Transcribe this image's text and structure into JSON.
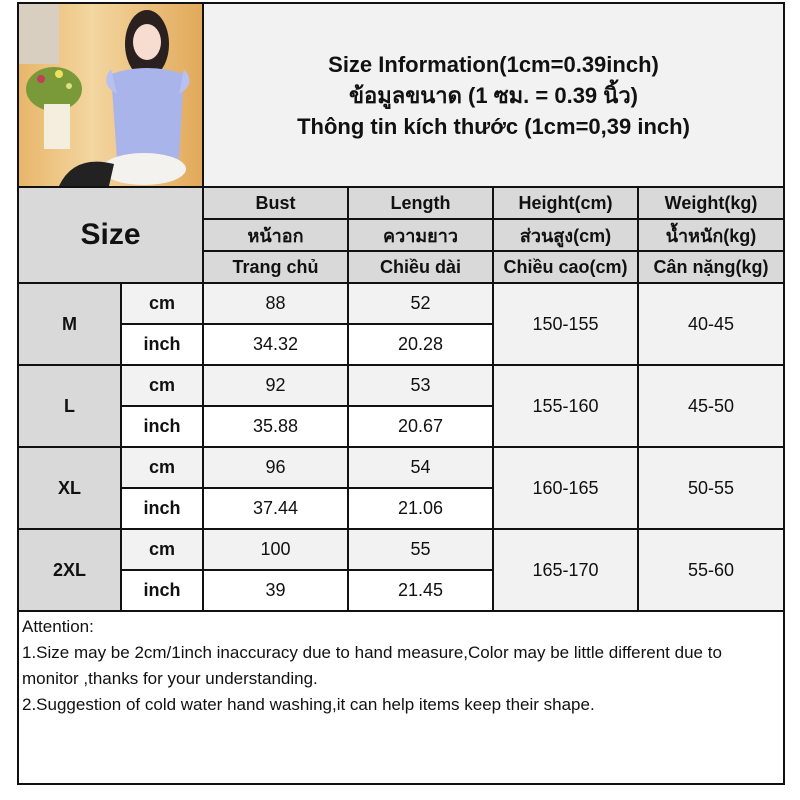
{
  "title_lines": [
    "Size Information(1cm=0.39inch)",
    "ข้อมูลขนาด (1 ซม. = 0.39 นิ้ว)",
    "Thông tin kích thước (1cm=0,39 inch)"
  ],
  "size_header": "Size",
  "columns": [
    {
      "en": "Bust",
      "th": "หน้าอก",
      "vi": "Trang chủ"
    },
    {
      "en": "Length",
      "th": "ความยาว",
      "vi": "Chiều dài"
    },
    {
      "en": "Height(cm)",
      "th": "ส่วนสูง(cm)",
      "vi": "Chiều cao(cm)"
    },
    {
      "en": "Weight(kg)",
      "th": "น้ำหนัก(kg)",
      "vi": "Cân nặng(kg)"
    }
  ],
  "units": {
    "cm": "cm",
    "inch": "inch"
  },
  "sizes": [
    {
      "size": "M",
      "cm": [
        "88",
        "52"
      ],
      "inch": [
        "34.32",
        "20.28"
      ],
      "height": "150-155",
      "weight": "40-45"
    },
    {
      "size": "L",
      "cm": [
        "92",
        "53"
      ],
      "inch": [
        "35.88",
        "20.67"
      ],
      "height": "155-160",
      "weight": "45-50"
    },
    {
      "size": "XL",
      "cm": [
        "96",
        "54"
      ],
      "inch": [
        "37.44",
        "21.06"
      ],
      "height": "160-165",
      "weight": "50-55"
    },
    {
      "size": "2XL",
      "cm": [
        "100",
        "55"
      ],
      "inch": [
        "39",
        "21.45"
      ],
      "height": "165-170",
      "weight": "55-60"
    }
  ],
  "attention": [
    "Attention:",
    "1.Size may be 2cm/1inch inaccuracy due to hand measure,Color may be little different due to monitor ,thanks for your understanding.",
    "2.Suggestion of cold water hand washing,it can help items keep their shape."
  ],
  "colors": {
    "header_bg": "#d9d9d9",
    "title_bg": "#f2f2f2",
    "cm_row_bg": "#f2f2f2",
    "border": "#111111"
  }
}
